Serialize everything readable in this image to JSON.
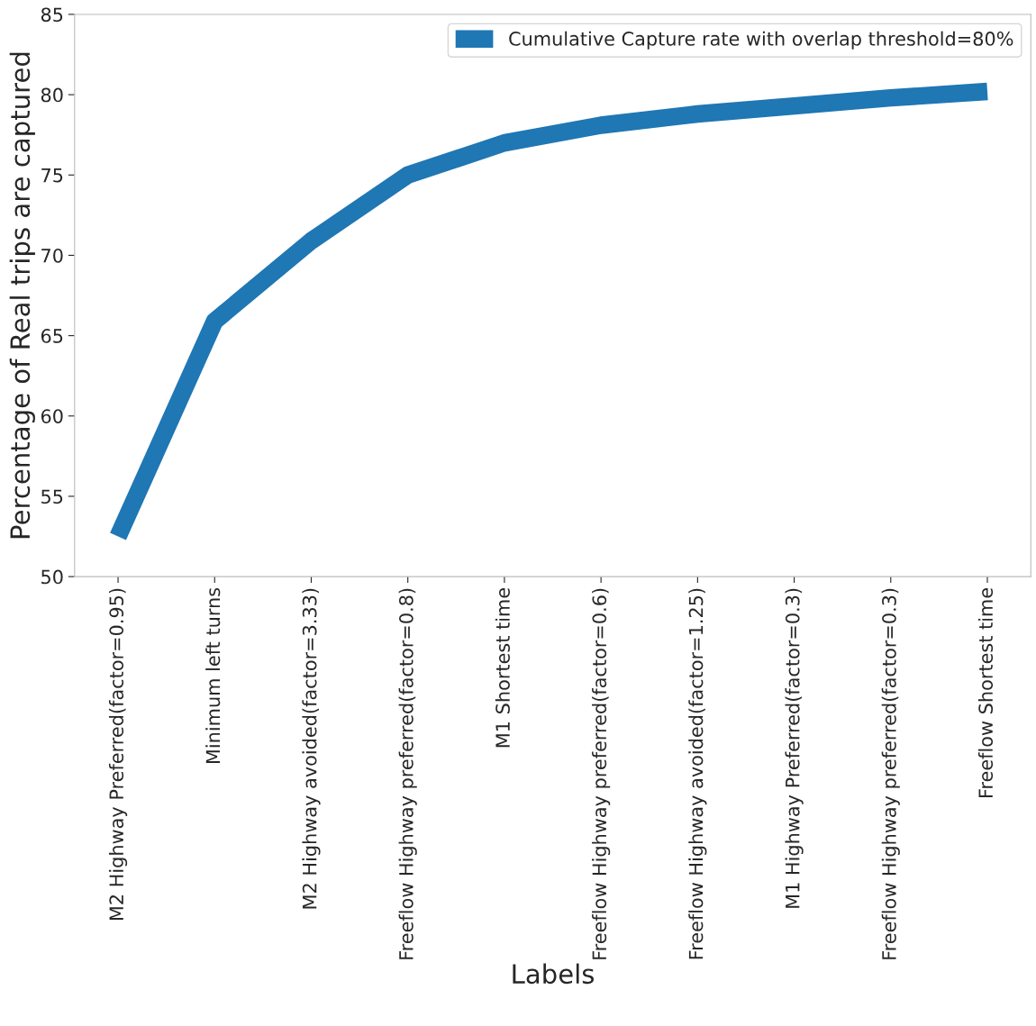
{
  "chart_data": {
    "type": "line",
    "xlabel": "Labels",
    "ylabel": "Percentage of Real trips are captured",
    "categories": [
      "M2 Highway Preferred(factor=0.95)",
      "Minimum left turns",
      "M2 Highway avoided(factor=3.33)",
      "Freeflow Highway preferred(factor=0.8)",
      "M1 Shortest time",
      "Freeflow Highway preferred(factor=0.6)",
      "Freeflow Highway avoided(factor=1.25)",
      "M1 Highway Preferred(factor=0.3)",
      "Freeflow Highway preferred(factor=0.3)",
      "Freeflow Shortest time"
    ],
    "series": [
      {
        "name": "Cumulative Capture rate with overlap threshold=80%",
        "color": "#1f77b4",
        "values": [
          52.5,
          65.9,
          70.9,
          75.0,
          77.0,
          78.1,
          78.8,
          79.3,
          79.8,
          80.2
        ]
      }
    ],
    "ylim": [
      50,
      85
    ],
    "yticks": [
      50,
      55,
      60,
      65,
      70,
      75,
      80,
      85
    ],
    "grid": false,
    "legend": "top right",
    "marker": "none",
    "line_style": "solid"
  }
}
